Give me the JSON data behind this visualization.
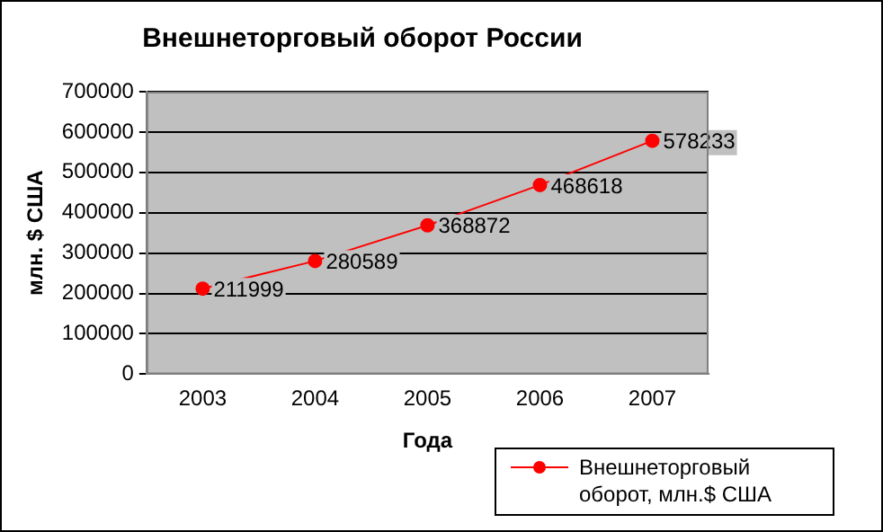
{
  "chart_data": {
    "type": "line",
    "title": "Внешнеторговый оборот России",
    "xlabel": "Года",
    "ylabel": "млн. $ США",
    "categories": [
      "2003",
      "2004",
      "2005",
      "2006",
      "2007"
    ],
    "series": [
      {
        "name": "Внешнеторговый оборот, млн.$ США",
        "color": "#ff0000",
        "values": [
          211999,
          280589,
          368872,
          468618,
          578233
        ]
      }
    ],
    "ylim": [
      0,
      700000
    ],
    "yticks": [
      0,
      100000,
      200000,
      300000,
      400000,
      500000,
      600000,
      700000
    ],
    "grid": "y",
    "legend": "bottom right",
    "marker": "circle",
    "line_style": "solid",
    "data_labels": true
  }
}
